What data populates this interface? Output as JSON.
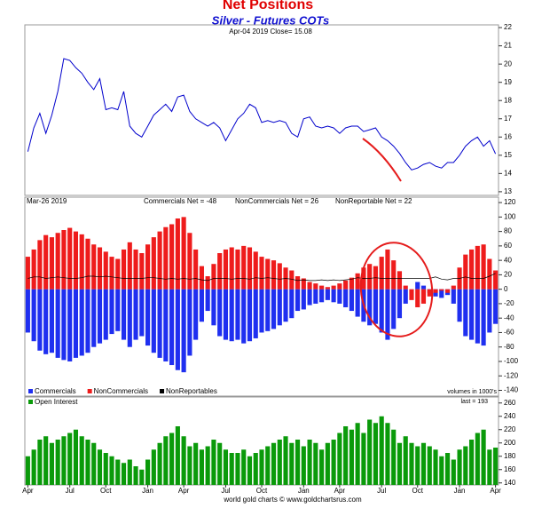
{
  "chart_data": [
    {
      "type": "line",
      "title": "Net Positions",
      "subtitle": "Silver - Futures COTs",
      "annotation": "Apr-04 2019  Close= 15.08",
      "color": "#0000cc",
      "values": [
        15.2,
        16.5,
        17.3,
        16.2,
        17.2,
        18.5,
        20.3,
        20.2,
        19.8,
        19.5,
        19.0,
        18.6,
        19.2,
        17.5,
        17.6,
        17.5,
        18.5,
        16.6,
        16.2,
        16.0,
        16.6,
        17.2,
        17.5,
        17.8,
        17.4,
        18.2,
        18.3,
        17.4,
        17.0,
        16.8,
        16.6,
        16.8,
        16.5,
        15.8,
        16.4,
        17.0,
        17.3,
        17.8,
        17.6,
        16.8,
        16.9,
        16.8,
        16.9,
        16.8,
        16.2,
        16.0,
        17.0,
        17.1,
        16.6,
        16.5,
        16.6,
        16.5,
        16.2,
        16.5,
        16.6,
        16.6,
        16.3,
        16.4,
        16.5,
        16.0,
        15.8,
        15.5,
        15.1,
        14.6,
        14.2,
        14.3,
        14.5,
        14.6,
        14.4,
        14.3,
        14.6,
        14.6,
        15.0,
        15.5,
        15.8,
        16.0,
        15.5,
        15.8,
        15.08
      ],
      "ylim": [
        12.8,
        22.15
      ],
      "yticks": [
        13,
        14,
        15,
        16,
        17,
        18,
        19,
        20,
        21,
        22
      ]
    },
    {
      "type": "bar",
      "annotations": [
        "Mar-26 2019",
        "Commercials Net = -48",
        "NonCommercials Net = 26",
        "NonReportable Net = 22",
        "volumes in 1000's",
        "last = 193"
      ],
      "series": [
        {
          "name": "Commercials",
          "color": "#1f2ff0",
          "values": [
            -60,
            -72,
            -85,
            -90,
            -88,
            -95,
            -98,
            -100,
            -95,
            -92,
            -88,
            -80,
            -75,
            -70,
            -62,
            -58,
            -70,
            -80,
            -70,
            -65,
            -78,
            -88,
            -95,
            -100,
            -105,
            -112,
            -115,
            -92,
            -70,
            -45,
            -30,
            -50,
            -65,
            -70,
            -72,
            -70,
            -75,
            -72,
            -68,
            -60,
            -58,
            -55,
            -50,
            -45,
            -40,
            -30,
            -28,
            -22,
            -20,
            -18,
            -15,
            -18,
            -20,
            -25,
            -30,
            -38,
            -45,
            -50,
            -48,
            -60,
            -70,
            -55,
            -40,
            -20,
            0,
            10,
            5,
            -5,
            -10,
            -12,
            -8,
            -20,
            -45,
            -65,
            -70,
            -75,
            -78,
            -60,
            -48
          ]
        },
        {
          "name": "NonCommercials",
          "color": "#ee1c1c",
          "values": [
            45,
            55,
            68,
            75,
            72,
            78,
            82,
            85,
            80,
            76,
            70,
            62,
            58,
            52,
            45,
            42,
            55,
            65,
            55,
            50,
            62,
            72,
            80,
            86,
            90,
            98,
            100,
            78,
            55,
            32,
            18,
            35,
            50,
            55,
            58,
            55,
            60,
            58,
            52,
            45,
            42,
            40,
            36,
            30,
            26,
            18,
            15,
            10,
            8,
            5,
            3,
            5,
            8,
            12,
            16,
            22,
            30,
            35,
            32,
            45,
            55,
            40,
            25,
            5,
            -15,
            -25,
            -20,
            -10,
            -5,
            -2,
            -5,
            5,
            30,
            48,
            55,
            60,
            62,
            42,
            26
          ]
        },
        {
          "name": "NonReportables",
          "color": "#000000",
          "kind": "line",
          "values": [
            15,
            17,
            17,
            15,
            16,
            17,
            16,
            15,
            15,
            16,
            18,
            18,
            17,
            18,
            17,
            16,
            15,
            15,
            15,
            15,
            16,
            16,
            15,
            14,
            15,
            14,
            15,
            14,
            15,
            13,
            12,
            15,
            15,
            15,
            14,
            15,
            15,
            14,
            16,
            15,
            16,
            15,
            14,
            15,
            14,
            12,
            13,
            12,
            12,
            13,
            12,
            13,
            12,
            13,
            14,
            16,
            15,
            15,
            16,
            15,
            15,
            15,
            15,
            15,
            15,
            15,
            15,
            15,
            17,
            14,
            13,
            15,
            15,
            17,
            15,
            15,
            15,
            18,
            22
          ]
        }
      ],
      "ylim": [
        -148,
        127.5
      ],
      "yticks": [
        -140,
        -120,
        -100,
        -80,
        -60,
        -40,
        -20,
        0,
        20,
        40,
        60,
        80,
        100,
        120
      ]
    },
    {
      "type": "bar",
      "footer": "world gold charts © www.goldchartsrus.com",
      "categories": [
        "Apr",
        null,
        null,
        null,
        null,
        null,
        null,
        "Jul",
        null,
        null,
        null,
        null,
        null,
        "Oct",
        null,
        null,
        null,
        null,
        null,
        null,
        "Jan",
        null,
        null,
        null,
        null,
        null,
        "Apr",
        null,
        null,
        null,
        null,
        null,
        null,
        "Jul",
        null,
        null,
        null,
        null,
        null,
        "Oct",
        null,
        null,
        null,
        null,
        null,
        null,
        "Jan",
        null,
        null,
        null,
        null,
        null,
        "Apr",
        null,
        null,
        null,
        null,
        null,
        null,
        "Jul",
        null,
        null,
        null,
        null,
        null,
        "Oct",
        null,
        null,
        null,
        null,
        null,
        null,
        "Jan",
        null,
        null,
        null,
        null,
        null,
        "Apr"
      ],
      "series": [
        {
          "name": "Open Interest",
          "color": "#0a9a0a",
          "values": [
            180,
            190,
            205,
            210,
            200,
            205,
            210,
            215,
            220,
            210,
            205,
            200,
            190,
            185,
            180,
            175,
            170,
            175,
            165,
            160,
            175,
            190,
            200,
            210,
            215,
            225,
            210,
            195,
            200,
            190,
            195,
            205,
            200,
            190,
            185,
            185,
            190,
            180,
            185,
            190,
            195,
            200,
            205,
            210,
            200,
            205,
            195,
            205,
            200,
            190,
            200,
            205,
            215,
            225,
            220,
            230,
            215,
            235,
            230,
            240,
            230,
            220,
            200,
            210,
            200,
            195,
            200,
            195,
            190,
            180,
            185,
            175,
            190,
            195,
            205,
            215,
            220,
            190,
            193
          ]
        }
      ],
      "ylim": [
        137,
        269
      ],
      "yticks": [
        140,
        160,
        180,
        200,
        220,
        240,
        260
      ]
    }
  ]
}
